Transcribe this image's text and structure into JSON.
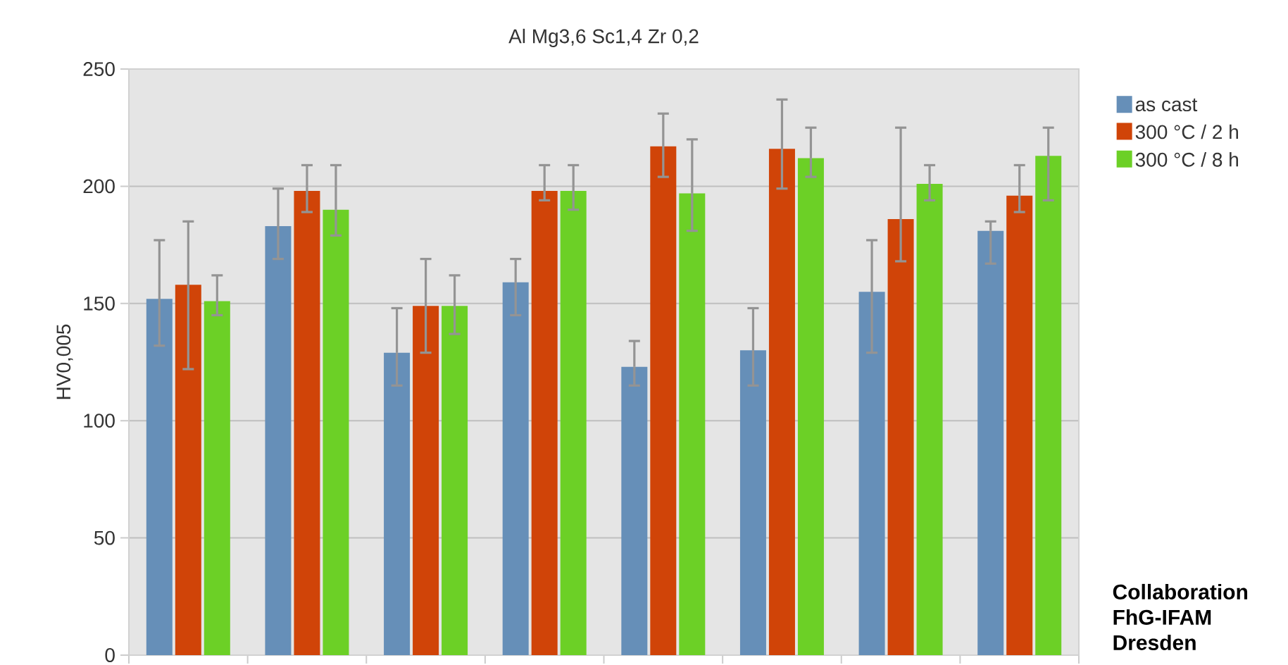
{
  "chart_data": {
    "type": "bar",
    "title": "Al Mg3,6 Sc1,4 Zr 0,2",
    "ylabel": "HV0,005",
    "categories": [
      null,
      null,
      null,
      null,
      null,
      null,
      null,
      null
    ],
    "series": [
      {
        "name": "as cast",
        "color": "#668fb8",
        "values": [
          152,
          183,
          129,
          159,
          123,
          130,
          155,
          181
        ],
        "errors": [
          [
            132,
            177
          ],
          [
            169,
            199
          ],
          [
            115,
            148
          ],
          [
            145,
            169
          ],
          [
            115,
            134
          ],
          [
            115,
            148
          ],
          [
            129,
            177
          ],
          [
            167,
            185
          ]
        ]
      },
      {
        "name": "300 °C / 2 h",
        "color": "#d04408",
        "values": [
          158,
          198,
          149,
          198,
          217,
          216,
          186,
          196
        ],
        "errors": [
          [
            122,
            185
          ],
          [
            189,
            209
          ],
          [
            129,
            169
          ],
          [
            194,
            209
          ],
          [
            204,
            231
          ],
          [
            199,
            237
          ],
          [
            168,
            225
          ],
          [
            189,
            209
          ]
        ]
      },
      {
        "name": "300 °C / 8 h",
        "color": "#6cd026",
        "values": [
          151,
          190,
          149,
          198,
          197,
          212,
          201,
          213
        ],
        "errors": [
          [
            145,
            162
          ],
          [
            179,
            209
          ],
          [
            137,
            162
          ],
          [
            190,
            209
          ],
          [
            181,
            220
          ],
          [
            204,
            225
          ],
          [
            194,
            209
          ],
          [
            194,
            225
          ]
        ]
      }
    ],
    "ylim": [
      0,
      250
    ],
    "yticks": [
      0,
      50,
      100,
      150,
      200,
      250
    ],
    "grid": "y",
    "legend": "top right",
    "tick_labels": "y",
    "annotations": [
      "Collaboration FhG-IFAM Dresden"
    ]
  }
}
